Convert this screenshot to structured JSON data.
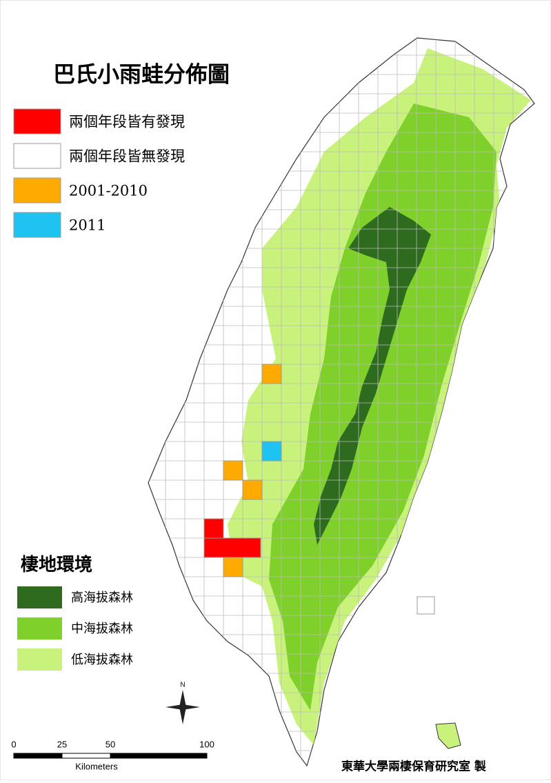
{
  "title": "巴氏小雨蛙分佈圖",
  "legend": [
    {
      "label": "兩個年段皆有發現",
      "color": "#ff0000"
    },
    {
      "label": "兩個年段皆無發現",
      "color": "#ffffff"
    },
    {
      "label": "2001-2010",
      "color": "#ffaa00"
    },
    {
      "label": "2011",
      "color": "#1ec3f2"
    }
  ],
  "habitat": {
    "title": "棲地環境",
    "items": [
      {
        "label": "高海拔森林",
        "color": "#2e6b1e"
      },
      {
        "label": "中海拔森林",
        "color": "#7fd02a"
      },
      {
        "label": "低海拔森林",
        "color": "#c9f27c"
      }
    ]
  },
  "north": "N",
  "scale": {
    "ticks": [
      0,
      25,
      50,
      100
    ],
    "unit": "Kilometers"
  },
  "credit": "東華大學兩棲保育研究室 製"
}
